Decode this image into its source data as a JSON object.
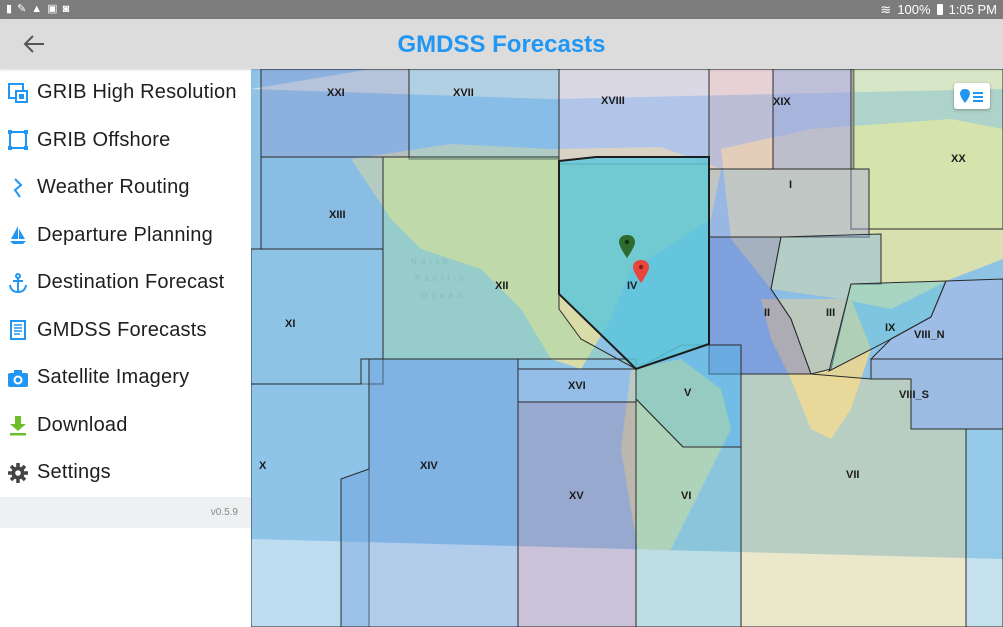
{
  "status_bar": {
    "battery": "100%",
    "time": "1:05 PM"
  },
  "header": {
    "title": "GMDSS Forecasts"
  },
  "drawer": {
    "items": [
      {
        "label": "GRIB High Resolution",
        "icon": "grib-high-resolution-icon"
      },
      {
        "label": "GRIB Offshore",
        "icon": "grib-offshore-icon"
      },
      {
        "label": "Weather Routing",
        "icon": "weather-routing-icon"
      },
      {
        "label": "Departure Planning",
        "icon": "sailboat-icon"
      },
      {
        "label": "Destination Forecast",
        "icon": "anchor-icon"
      },
      {
        "label": "GMDSS Forecasts",
        "icon": "document-icon"
      },
      {
        "label": "Satellite Imagery",
        "icon": "camera-icon"
      },
      {
        "label": "Download",
        "icon": "download-icon"
      },
      {
        "label": "Settings",
        "icon": "gear-icon"
      }
    ],
    "version": "v0.5.9"
  },
  "map": {
    "zones": {
      "XXI": "XXI",
      "XVII": "XVII",
      "XVIII": "XVIII",
      "XIX": "XIX",
      "XX": "XX",
      "I": "I",
      "XIII": "XIII",
      "XII": "XII",
      "IV": "IV",
      "II": "II",
      "III": "III",
      "IX": "IX",
      "VIII_N": "VIII_N",
      "XI": "XI",
      "XVI": "XVI",
      "V": "V",
      "VIII_S": "VIII_S",
      "X": "X",
      "XIV": "XIV",
      "XV": "XV",
      "VI": "VI",
      "VII": "VII"
    },
    "colors": {
      "selected_zone": "#5ec5d9",
      "marker_green": "#2e6b2e",
      "marker_red": "#e8453c",
      "accent": "#2196f3"
    }
  }
}
